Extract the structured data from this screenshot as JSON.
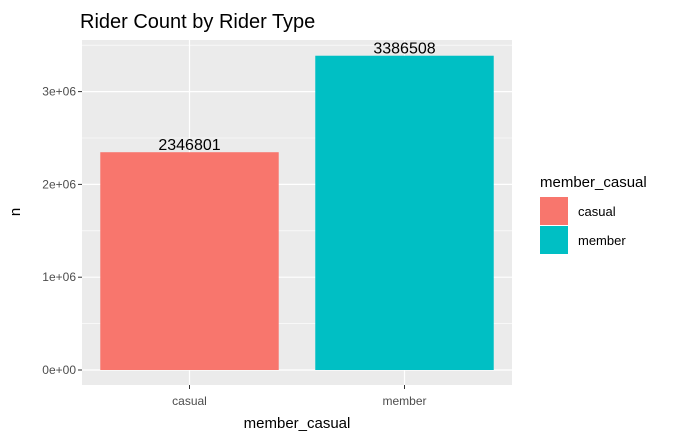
{
  "chart_data": {
    "type": "bar",
    "title": "Rider Count by Rider Type",
    "xlabel": "member_casual",
    "ylabel": "n",
    "categories": [
      "casual",
      "member"
    ],
    "values": [
      2346801,
      3386508
    ],
    "data_labels": [
      "2346801",
      "3386508"
    ],
    "colors": [
      "#F8766D",
      "#00BFC4"
    ],
    "ylim": [
      0,
      3556000
    ],
    "y_ticks": [
      0,
      1000000,
      2000000,
      3000000
    ],
    "y_tick_labels": [
      "0e+00",
      "1e+06",
      "2e+06",
      "3e+06"
    ],
    "grid": true,
    "legend": {
      "title": "member_casual",
      "placement": "right",
      "entries": [
        "casual",
        "member"
      ]
    }
  }
}
